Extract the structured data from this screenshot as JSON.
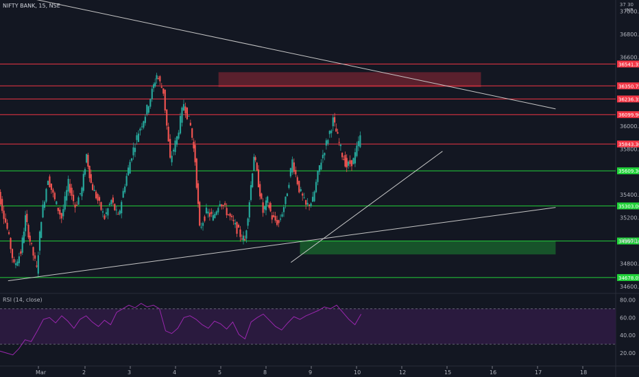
{
  "header": {
    "symbol_label": "NIFTY BANK, 15, NSE"
  },
  "rsi_header": {
    "label": "RSI (14, close)"
  },
  "top_right": {
    "price_top": "37",
    "unit": "INR",
    "value_right": "30"
  },
  "colors": {
    "background": "#131722",
    "up": "#26a69a",
    "down": "#ef5350",
    "resistance": "#f23645",
    "support": "#22d33a",
    "rsi_line": "#9c27b0",
    "rsi_band": "#2a1a3e",
    "trendline": "#c8c8c8"
  },
  "chart_data": [
    {
      "type": "candlestick",
      "title": "NIFTY BANK, 15, NSE",
      "y_ticks": [
        34600,
        34800,
        35000,
        35200,
        35400,
        35800,
        36000,
        36600,
        36800,
        37000
      ],
      "y_tick_labels": [
        "34600.00",
        "34800.00",
        "35000.00",
        "35200.00",
        "35400.00",
        "35800.00",
        "36000.00",
        "36600.00",
        "36800.00",
        "37000.00"
      ],
      "ylim": [
        34540,
        37100
      ],
      "x_ticks": [
        "Mar",
        "2",
        "3",
        "4",
        "5",
        "8",
        "9",
        "10",
        "12",
        "15",
        "16",
        "17",
        "18"
      ],
      "resistance_levels": [
        {
          "value": 36541.35,
          "label": "36541.35"
        },
        {
          "value": 36350.75,
          "label": "36350.75"
        },
        {
          "value": 36236.35,
          "label": "36236.35"
        },
        {
          "value": 36099.9,
          "label": "36099.90"
        },
        {
          "value": 35843.3,
          "label": "35843.30"
        }
      ],
      "support_levels": [
        {
          "value": 35609.3,
          "label": "35609.30"
        },
        {
          "value": 35303.0,
          "label": "35303.00"
        },
        {
          "value": 34997.1,
          "label": "34997.10"
        },
        {
          "value": 34678.05,
          "label": "34678.05"
        }
      ],
      "supply_zone": {
        "low": 36340,
        "high": 36470,
        "from_session": 3.95,
        "to_session": 9.75
      },
      "demand_zone": {
        "low": 34880,
        "high": 34997.1,
        "from_session": 5.75,
        "to_session": 11.4
      },
      "trendlines": [
        {
          "from": [
            -1,
            37180
          ],
          "to": [
            11.4,
            36150
          ]
        },
        {
          "from": [
            -0.7,
            34650
          ],
          "to": [
            11.4,
            35290
          ]
        },
        {
          "from": [
            5.55,
            34810
          ],
          "to": [
            8.9,
            35780
          ]
        }
      ],
      "ohlc_path": [
        [
          -1,
          35600
        ],
        [
          -0.85,
          35350
        ],
        [
          -0.7,
          35100
        ],
        [
          -0.55,
          34780
        ],
        [
          -0.4,
          34900
        ],
        [
          -0.3,
          35200
        ],
        [
          -0.2,
          35000
        ],
        [
          -0.05,
          34750
        ],
        [
          0.05,
          35200
        ],
        [
          0.2,
          35550
        ],
        [
          0.35,
          35350
        ],
        [
          0.5,
          35200
        ],
        [
          0.65,
          35500
        ],
        [
          0.8,
          35300
        ],
        [
          0.95,
          35450
        ],
        [
          1.05,
          35750
        ],
        [
          1.15,
          35500
        ],
        [
          1.3,
          35350
        ],
        [
          1.45,
          35200
        ],
        [
          1.6,
          35350
        ],
        [
          1.75,
          35200
        ],
        [
          1.9,
          35500
        ],
        [
          2.05,
          35750
        ],
        [
          2.2,
          35950
        ],
        [
          2.35,
          36100
        ],
        [
          2.5,
          36300
        ],
        [
          2.6,
          36450
        ],
        [
          2.75,
          36300
        ],
        [
          2.9,
          35700
        ],
        [
          3.05,
          35900
        ],
        [
          3.2,
          36200
        ],
        [
          3.35,
          36000
        ],
        [
          3.45,
          35700
        ],
        [
          3.55,
          35100
        ],
        [
          3.7,
          35250
        ],
        [
          3.85,
          35200
        ],
        [
          4.0,
          35350
        ],
        [
          4.15,
          35250
        ],
        [
          4.3,
          35150
        ],
        [
          4.45,
          35050
        ],
        [
          4.55,
          35000
        ],
        [
          4.65,
          35350
        ],
        [
          4.75,
          35750
        ],
        [
          4.85,
          35500
        ],
        [
          4.95,
          35250
        ],
        [
          5.05,
          35350
        ],
        [
          5.15,
          35200
        ],
        [
          5.3,
          35150
        ],
        [
          5.45,
          35350
        ],
        [
          5.6,
          35700
        ],
        [
          5.75,
          35450
        ],
        [
          5.9,
          35300
        ],
        [
          6.05,
          35350
        ],
        [
          6.2,
          35650
        ],
        [
          6.35,
          35850
        ],
        [
          6.5,
          36050
        ],
        [
          6.6,
          35900
        ],
        [
          6.7,
          35750
        ],
        [
          6.8,
          35650
        ],
        [
          6.95,
          35700
        ],
        [
          7.1,
          35900
        ]
      ]
    },
    {
      "type": "line",
      "title": "RSI (14, close)",
      "ylim": [
        10,
        85
      ],
      "y_ticks": [
        20,
        40,
        60,
        80
      ],
      "y_tick_labels": [
        "20.00",
        "40.00",
        "60.00",
        "80.00"
      ],
      "bands": [
        30,
        70
      ],
      "values": [
        24,
        22,
        20,
        18,
        25,
        35,
        33,
        45,
        58,
        60,
        54,
        62,
        56,
        48,
        58,
        62,
        55,
        50,
        57,
        52,
        66,
        70,
        74,
        71,
        76,
        72,
        74,
        70,
        45,
        42,
        48,
        60,
        62,
        58,
        52,
        48,
        56,
        53,
        47,
        55,
        41,
        36,
        55,
        60,
        64,
        57,
        50,
        46,
        54,
        61,
        58,
        62,
        65,
        68,
        72,
        70,
        74,
        66,
        58,
        52,
        64
      ]
    }
  ]
}
